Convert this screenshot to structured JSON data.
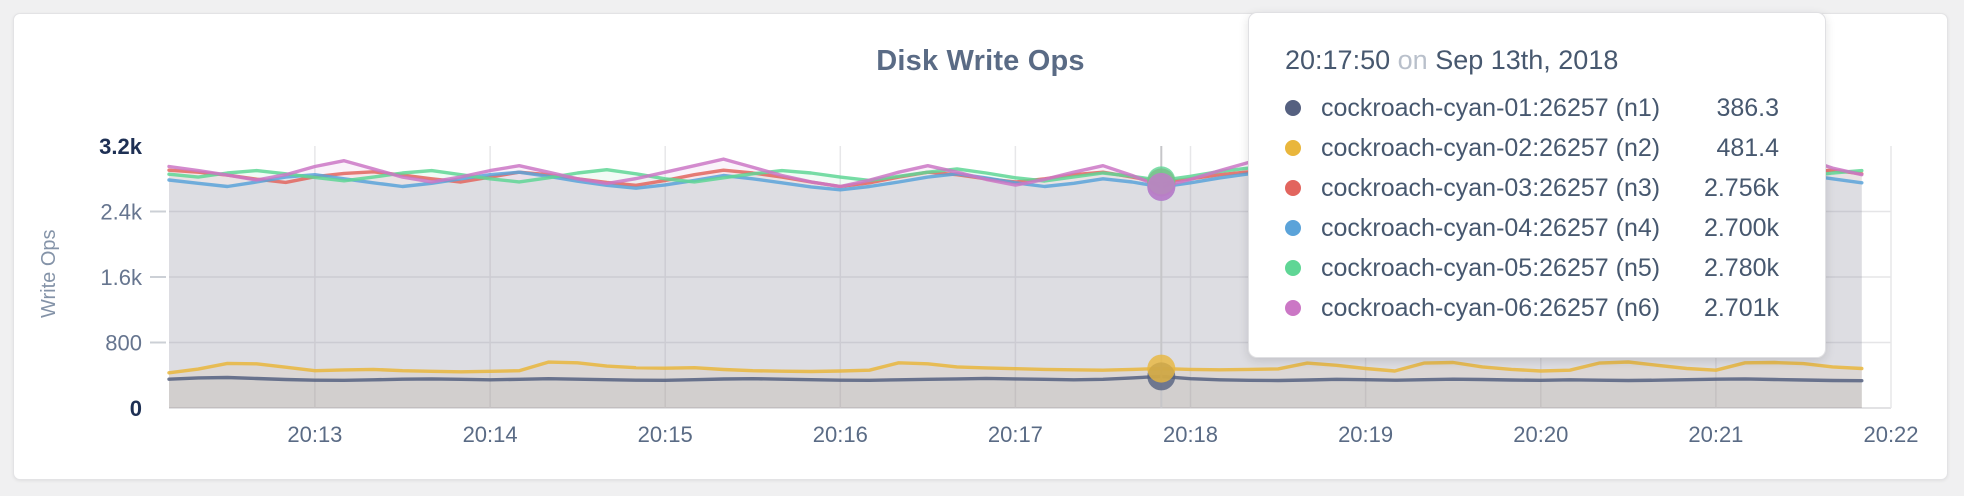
{
  "header": {
    "title": "Disk Write Ops"
  },
  "colors": {
    "title_text": "#5a6b85",
    "axis_text": "#66758f",
    "axis_text_strong": "#1e3054",
    "grid": "#e5e5e7",
    "hover_guideline": "#c6c6c9"
  },
  "tooltip": {
    "time": "20:17:50",
    "separator": "on",
    "date": "Sep 13th, 2018",
    "rows": [
      {
        "label": "cockroach-cyan-01:26257 (n1)",
        "value": "386.3",
        "color": "#556080"
      },
      {
        "label": "cockroach-cyan-02:26257 (n2)",
        "value": "481.4",
        "color": "#e9b63c"
      },
      {
        "label": "cockroach-cyan-03:26257 (n3)",
        "value": "2.756k",
        "color": "#e2655e"
      },
      {
        "label": "cockroach-cyan-04:26257 (n4)",
        "value": "2.700k",
        "color": "#5ba3d9"
      },
      {
        "label": "cockroach-cyan-05:26257 (n5)",
        "value": "2.780k",
        "color": "#5fd695"
      },
      {
        "label": "cockroach-cyan-06:26257 (n6)",
        "value": "2.701k",
        "color": "#cb77c5"
      }
    ]
  },
  "chart_data": {
    "type": "area",
    "title": "Disk Write Ops",
    "xlabel": "",
    "ylabel": "Write Ops",
    "ylim": [
      0,
      3200
    ],
    "grid": true,
    "legend_position": "tooltip",
    "y_ticks": [
      {
        "value": 0,
        "label": "0"
      },
      {
        "value": 800,
        "label": "800"
      },
      {
        "value": 1600,
        "label": "1.6k"
      },
      {
        "value": 2400,
        "label": "2.4k"
      },
      {
        "value": 3200,
        "label": "3.2k"
      }
    ],
    "x_tick_labels": [
      "20:13",
      "20:14",
      "20:15",
      "20:16",
      "20:17",
      "20:18",
      "20:19",
      "20:20",
      "20:21",
      "20:22"
    ],
    "tick_start_index": 5,
    "tick_interval": 6,
    "hover": {
      "index": 34,
      "time": "20:17:50",
      "date": "Sep 13th, 2018"
    },
    "series": [
      {
        "name": "cockroach-cyan-01:26257 (n1)",
        "color": "#556080",
        "hover_value": "386.3",
        "values": [
          352,
          368,
          372,
          360,
          348,
          340,
          338,
          344,
          352,
          356,
          350,
          344,
          350,
          358,
          352,
          346,
          340,
          338,
          346,
          354,
          358,
          352,
          346,
          340,
          338,
          344,
          350,
          356,
          362,
          356,
          350,
          344,
          350,
          368,
          386.3,
          358,
          344,
          338,
          336,
          342,
          350,
          346,
          340,
          346,
          352,
          348,
          342,
          338,
          344,
          340,
          336,
          340,
          346,
          352,
          356,
          348,
          342,
          336,
          334
        ]
      },
      {
        "name": "cockroach-cyan-02:26257 (n2)",
        "color": "#e9b63c",
        "hover_value": "481.4",
        "values": [
          430,
          475,
          545,
          540,
          498,
          455,
          465,
          472,
          455,
          448,
          442,
          448,
          455,
          560,
          552,
          512,
          492,
          486,
          492,
          470,
          456,
          450,
          446,
          452,
          462,
          552,
          540,
          502,
          490,
          480,
          472,
          466,
          462,
          472,
          481.4,
          472,
          466,
          472,
          478,
          548,
          522,
          482,
          452,
          548,
          556,
          502,
          472,
          452,
          462,
          548,
          562,
          522,
          482,
          462,
          552,
          556,
          542,
          502,
          482
        ]
      },
      {
        "name": "cockroach-cyan-03:26257 (n3)",
        "color": "#e2655e",
        "hover_value": "2.756k",
        "values": [
          2905,
          2880,
          2845,
          2795,
          2755,
          2825,
          2865,
          2885,
          2845,
          2800,
          2760,
          2820,
          2880,
          2850,
          2800,
          2755,
          2720,
          2780,
          2850,
          2905,
          2870,
          2820,
          2760,
          2705,
          2750,
          2820,
          2880,
          2850,
          2800,
          2760,
          2800,
          2850,
          2880,
          2820,
          2756,
          2800,
          2850,
          2885,
          2840,
          2790,
          2750,
          2800,
          2860,
          2905,
          2850,
          2790,
          2740,
          2780,
          2840,
          2880,
          2850,
          2800,
          2760,
          2720,
          2780,
          2840,
          2880,
          2905,
          2860
        ]
      },
      {
        "name": "cockroach-cyan-04:26257 (n4)",
        "color": "#5ba3d9",
        "hover_value": "2.700k",
        "values": [
          2785,
          2745,
          2705,
          2760,
          2820,
          2850,
          2800,
          2750,
          2705,
          2745,
          2800,
          2850,
          2880,
          2830,
          2770,
          2720,
          2685,
          2725,
          2780,
          2840,
          2800,
          2750,
          2700,
          2665,
          2705,
          2760,
          2820,
          2860,
          2810,
          2750,
          2705,
          2745,
          2800,
          2760,
          2700,
          2750,
          2810,
          2860,
          2820,
          2760,
          2705,
          2665,
          2725,
          2780,
          2840,
          2800,
          2740,
          2690,
          2730,
          2790,
          2850,
          2810,
          2750,
          2705,
          2745,
          2800,
          2850,
          2800,
          2750
        ]
      },
      {
        "name": "cockroach-cyan-05:26257 (n5)",
        "color": "#5fd695",
        "hover_value": "2.780k",
        "values": [
          2855,
          2820,
          2870,
          2900,
          2860,
          2815,
          2775,
          2820,
          2870,
          2900,
          2850,
          2800,
          2762,
          2812,
          2870,
          2910,
          2860,
          2800,
          2762,
          2812,
          2860,
          2900,
          2870,
          2820,
          2780,
          2830,
          2880,
          2920,
          2870,
          2812,
          2772,
          2822,
          2870,
          2830,
          2780,
          2830,
          2890,
          2930,
          2880,
          2820,
          2780,
          2830,
          2880,
          2840,
          2790,
          2840,
          2890,
          2850,
          2800,
          2762,
          2812,
          2860,
          2900,
          2860,
          2812,
          2772,
          2822,
          2870,
          2900
        ]
      },
      {
        "name": "cockroach-cyan-06:26257 (n6)",
        "color": "#cb77c5",
        "hover_value": "2.701k",
        "values": [
          2950,
          2900,
          2845,
          2785,
          2850,
          2950,
          3020,
          2920,
          2820,
          2762,
          2822,
          2900,
          2960,
          2880,
          2800,
          2742,
          2802,
          2880,
          2960,
          3040,
          2940,
          2840,
          2762,
          2705,
          2782,
          2880,
          2960,
          2880,
          2792,
          2722,
          2792,
          2880,
          2960,
          2840,
          2701,
          2792,
          2900,
          3000,
          3055,
          2940,
          2822,
          2742,
          2802,
          2880,
          2822,
          2752,
          2705,
          2762,
          2840,
          2900,
          2822,
          2752,
          2705,
          2782,
          2870,
          2960,
          3050,
          2930,
          2850
        ]
      }
    ]
  }
}
